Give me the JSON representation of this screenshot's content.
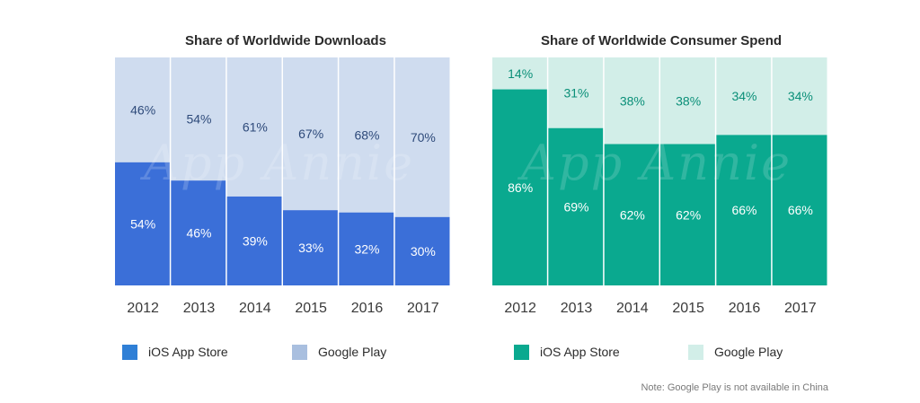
{
  "chart_data": [
    {
      "type": "bar",
      "stacked": true,
      "title": "Share of Worldwide Downloads",
      "categories": [
        "2012",
        "2013",
        "2014",
        "2015",
        "2016",
        "2017"
      ],
      "series": [
        {
          "name": "iOS App Store",
          "color": "#3b6fd8",
          "values": [
            54,
            46,
            39,
            33,
            32,
            30
          ],
          "labels": [
            "54%",
            "46%",
            "39%",
            "33%",
            "32%",
            "30%"
          ]
        },
        {
          "name": "Google Play",
          "color": "#cfdcef",
          "values": [
            46,
            54,
            61,
            67,
            68,
            70
          ],
          "labels": [
            "46%",
            "54%",
            "61%",
            "67%",
            "68%",
            "70%"
          ]
        }
      ],
      "ylim": [
        0,
        100
      ],
      "grid": false,
      "legend": "bottom"
    },
    {
      "type": "bar",
      "stacked": true,
      "title": "Share of Worldwide Consumer Spend",
      "categories": [
        "2012",
        "2013",
        "2014",
        "2015",
        "2016",
        "2017"
      ],
      "series": [
        {
          "name": "iOS App Store",
          "color": "#0aa98f",
          "values": [
            86,
            69,
            62,
            62,
            66,
            66
          ],
          "labels": [
            "86%",
            "69%",
            "62%",
            "62%",
            "66%",
            "66%"
          ]
        },
        {
          "name": "Google Play",
          "color": "#d2eee8",
          "values": [
            14,
            31,
            38,
            38,
            34,
            34
          ],
          "labels": [
            "14%",
            "31%",
            "38%",
            "38%",
            "34%",
            "34%"
          ]
        }
      ],
      "ylim": [
        0,
        100
      ],
      "grid": false,
      "legend": "bottom"
    }
  ],
  "watermark": "App Annie",
  "footnote": "Note: Google Play is not available in China",
  "styles": {
    "tick_color": "#3a3a3a",
    "label_on_dark": "#ffffff",
    "label_on_light_left": "#2e4a7a",
    "label_on_light_right": "#0a8f78"
  }
}
